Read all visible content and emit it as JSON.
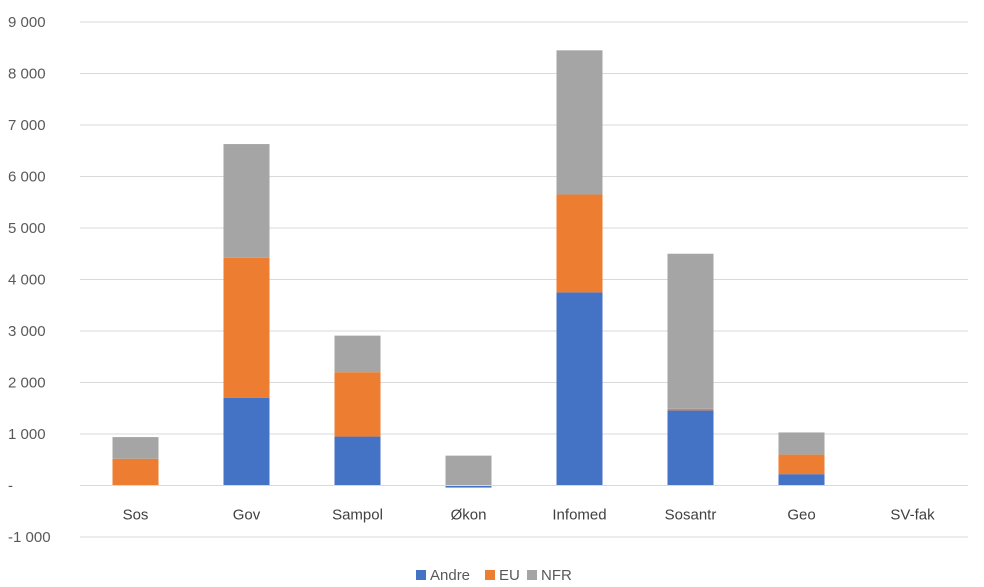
{
  "chart_data": {
    "type": "bar",
    "stacked": true,
    "categories": [
      "Sos",
      "Gov",
      "Sampol",
      "Økon",
      "Infomed",
      "Sosantr",
      "Geo",
      "SV-fak"
    ],
    "series": [
      {
        "name": "Andre",
        "color": "#4472C4",
        "values": [
          0,
          1700,
          950,
          -40,
          3750,
          1460,
          220,
          0
        ]
      },
      {
        "name": "EU",
        "color": "#ED7D31",
        "values": [
          520,
          2720,
          1250,
          0,
          1900,
          30,
          380,
          0
        ]
      },
      {
        "name": "NFR",
        "color": "#A5A5A5",
        "values": [
          420,
          2210,
          710,
          580,
          2800,
          3010,
          430,
          0
        ]
      }
    ],
    "ylim": [
      -1000,
      9000
    ],
    "y_ticks": [
      -1000,
      0,
      1000,
      2000,
      3000,
      4000,
      5000,
      6000,
      7000,
      8000,
      9000
    ],
    "y_tick_labels": [
      "-1 000",
      "-",
      "1 000",
      "2 000",
      "3 000",
      "4 000",
      "5 000",
      "6 000",
      "7 000",
      "8 000",
      "9 000"
    ],
    "grid": true,
    "legend_position": "bottom",
    "gridline_color": "#D9D9D9"
  }
}
